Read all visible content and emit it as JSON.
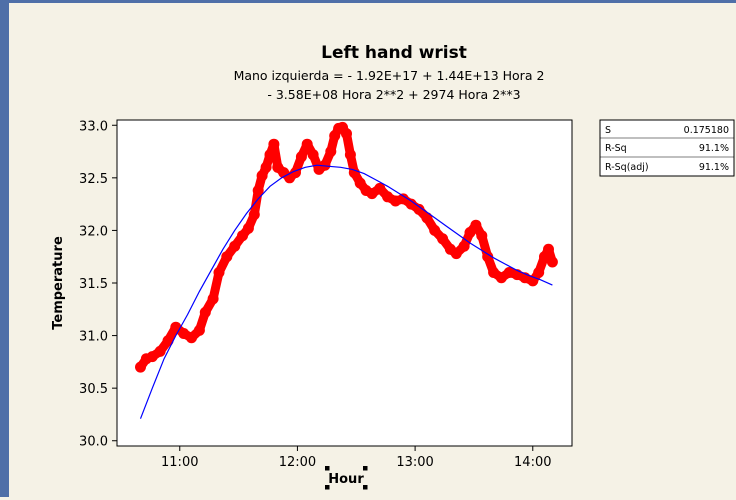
{
  "chart_data": {
    "type": "scatter",
    "title": "Left hand wrist",
    "subtitle_line1": "Mano izquierda =  - 1.92E+17 + 1.44E+13 Hora 2",
    "subtitle_line2": "- 3.58E+08 Hora 2**2 + 2974 Hora 2**3",
    "xlabel": "Hour",
    "ylabel": "Temperature",
    "xlim": [
      "10:28",
      "14:20"
    ],
    "ylim": [
      29.95,
      33.05
    ],
    "x_ticks": [
      "11:00",
      "12:00",
      "13:00",
      "14:00"
    ],
    "y_ticks": [
      "30.0",
      "30.5",
      "31.0",
      "31.5",
      "32.0",
      "32.5",
      "33.0"
    ],
    "grid": false,
    "series": [
      {
        "kind": "observed",
        "color": "#ff0000",
        "points": [
          [
            "10:40",
            30.7
          ],
          [
            "10:43",
            30.78
          ],
          [
            "10:46",
            30.8
          ],
          [
            "10:50",
            30.85
          ],
          [
            "10:54",
            30.95
          ],
          [
            "10:58",
            31.08
          ],
          [
            "11:02",
            31.02
          ],
          [
            "11:06",
            30.98
          ],
          [
            "11:10",
            31.05
          ],
          [
            "11:13",
            31.22
          ],
          [
            "11:17",
            31.35
          ],
          [
            "11:20",
            31.6
          ],
          [
            "11:24",
            31.75
          ],
          [
            "11:28",
            31.85
          ],
          [
            "11:32",
            31.95
          ],
          [
            "11:35",
            32.02
          ],
          [
            "11:38",
            32.15
          ],
          [
            "11:40",
            32.38
          ],
          [
            "11:42",
            32.52
          ],
          [
            "11:44",
            32.6
          ],
          [
            "11:46",
            32.72
          ],
          [
            "11:48",
            32.82
          ],
          [
            "11:50",
            32.6
          ],
          [
            "11:53",
            32.55
          ],
          [
            "11:56",
            32.5
          ],
          [
            "11:59",
            32.55
          ],
          [
            "12:02",
            32.7
          ],
          [
            "12:05",
            32.82
          ],
          [
            "12:08",
            32.72
          ],
          [
            "12:11",
            32.58
          ],
          [
            "12:14",
            32.62
          ],
          [
            "12:17",
            32.75
          ],
          [
            "12:19",
            32.9
          ],
          [
            "12:21",
            32.97
          ],
          [
            "12:23",
            32.98
          ],
          [
            "12:25",
            32.92
          ],
          [
            "12:27",
            32.72
          ],
          [
            "12:29",
            32.55
          ],
          [
            "12:32",
            32.45
          ],
          [
            "12:35",
            32.38
          ],
          [
            "12:38",
            32.35
          ],
          [
            "12:42",
            32.4
          ],
          [
            "12:46",
            32.32
          ],
          [
            "12:50",
            32.28
          ],
          [
            "12:54",
            32.3
          ],
          [
            "12:58",
            32.25
          ],
          [
            "13:02",
            32.2
          ],
          [
            "13:06",
            32.12
          ],
          [
            "13:10",
            32.0
          ],
          [
            "13:14",
            31.92
          ],
          [
            "13:18",
            31.82
          ],
          [
            "13:21",
            31.78
          ],
          [
            "13:25",
            31.85
          ],
          [
            "13:28",
            31.98
          ],
          [
            "13:31",
            32.05
          ],
          [
            "13:34",
            31.95
          ],
          [
            "13:37",
            31.75
          ],
          [
            "13:40",
            31.6
          ],
          [
            "13:44",
            31.55
          ],
          [
            "13:48",
            31.6
          ],
          [
            "13:52",
            31.58
          ],
          [
            "13:56",
            31.55
          ],
          [
            "14:00",
            31.52
          ],
          [
            "14:03",
            31.6
          ],
          [
            "14:06",
            31.75
          ],
          [
            "14:08",
            31.82
          ],
          [
            "14:10",
            31.7
          ]
        ]
      },
      {
        "kind": "fitted",
        "color": "#0000ff",
        "points": [
          [
            "10:40",
            30.21
          ],
          [
            "10:46",
            30.5
          ],
          [
            "10:52",
            30.78
          ],
          [
            "10:58",
            31.0
          ],
          [
            "11:04",
            31.2
          ],
          [
            "11:10",
            31.42
          ],
          [
            "11:16",
            31.62
          ],
          [
            "11:22",
            31.82
          ],
          [
            "11:28",
            32.0
          ],
          [
            "11:34",
            32.16
          ],
          [
            "11:40",
            32.3
          ],
          [
            "11:46",
            32.42
          ],
          [
            "11:52",
            32.5
          ],
          [
            "11:58",
            32.56
          ],
          [
            "12:04",
            32.6
          ],
          [
            "12:10",
            32.62
          ],
          [
            "12:16",
            32.61
          ],
          [
            "12:22",
            32.6
          ],
          [
            "12:28",
            32.58
          ],
          [
            "12:34",
            32.54
          ],
          [
            "12:40",
            32.48
          ],
          [
            "12:46",
            32.42
          ],
          [
            "12:52",
            32.35
          ],
          [
            "12:58",
            32.28
          ],
          [
            "13:04",
            32.2
          ],
          [
            "13:10",
            32.12
          ],
          [
            "13:16",
            32.04
          ],
          [
            "13:22",
            31.96
          ],
          [
            "13:28",
            31.88
          ],
          [
            "13:34",
            31.81
          ],
          [
            "13:40",
            31.74
          ],
          [
            "13:46",
            31.68
          ],
          [
            "13:52",
            31.62
          ],
          [
            "13:58",
            31.57
          ],
          [
            "14:04",
            31.53
          ],
          [
            "14:10",
            31.48
          ]
        ]
      }
    ],
    "stats": [
      {
        "label": "S",
        "value": "0.175180"
      },
      {
        "label": "R-Sq",
        "value": "91.1%"
      },
      {
        "label": "R-Sq(adj)",
        "value": "91.1%"
      }
    ]
  }
}
